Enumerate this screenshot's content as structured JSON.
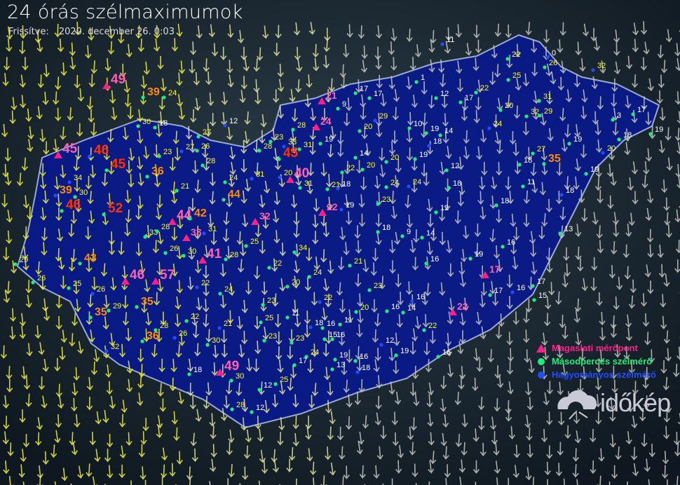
{
  "header": {
    "title": "24 órás szélmaximumok",
    "updated_label": "Frissítve:",
    "updated_value": "2020. december 26. 0:03"
  },
  "legend": [
    {
      "label": "Magaslati mérőpont",
      "symbol": "triangle",
      "color": "#ff1f8a"
    },
    {
      "label": "Másodperces szélmérő",
      "symbol": "dot",
      "color": "#19f07a"
    },
    {
      "label": "Hagyományos szélmérő",
      "symbol": "dot",
      "color": "#1f4dff"
    }
  ],
  "logo": {
    "text": "időkép"
  },
  "colors": {
    "calm": "#ffffff",
    "moderate": "#ffff22",
    "strong": "#ff8c00",
    "severe": "#ff3300",
    "high_station": "#ff5fb4",
    "country": "#0a1a8a"
  },
  "stations": [
    {
      "v": "49",
      "t": "h"
    },
    {
      "v": "45",
      "t": "h"
    },
    {
      "v": "21",
      "t": "h"
    },
    {
      "v": "24",
      "t": "h"
    },
    {
      "v": "40",
      "t": "h"
    },
    {
      "v": "22",
      "t": "h"
    },
    {
      "v": "44",
      "t": "h"
    },
    {
      "v": "33",
      "t": "h"
    },
    {
      "v": "41",
      "t": "h"
    },
    {
      "v": "46",
      "t": "h"
    },
    {
      "v": "57",
      "t": "h"
    },
    {
      "v": "32",
      "t": "h"
    },
    {
      "v": "49",
      "t": "h"
    },
    {
      "v": "22",
      "t": "h"
    },
    {
      "v": "17",
      "t": "h"
    },
    {
      "v": "46",
      "t": "s"
    },
    {
      "v": "52",
      "t": "s"
    },
    {
      "v": "46",
      "t": "s"
    },
    {
      "v": "45",
      "t": "s"
    },
    {
      "v": "39",
      "t": "s"
    },
    {
      "v": "39",
      "t": "s"
    },
    {
      "v": "43",
      "t": "s"
    },
    {
      "v": "42",
      "t": "s"
    },
    {
      "v": "44",
      "t": "s"
    },
    {
      "v": "45",
      "t": "s"
    },
    {
      "v": "33",
      "t": "s"
    },
    {
      "v": "35",
      "t": "s"
    },
    {
      "v": "36",
      "t": "s"
    },
    {
      "v": "35",
      "t": "s"
    },
    {
      "v": "36",
      "t": "s"
    },
    {
      "v": "32",
      "t": "s"
    },
    {
      "v": "35",
      "t": "s"
    },
    {
      "v": "30",
      "t": "s"
    },
    {
      "v": "27",
      "t": "s"
    },
    {
      "v": "23",
      "t": "s"
    },
    {
      "v": "27",
      "t": "s"
    },
    {
      "v": "26",
      "t": "s"
    },
    {
      "v": "28",
      "t": "s"
    },
    {
      "v": "21",
      "t": "s"
    },
    {
      "v": "24",
      "t": "s"
    },
    {
      "v": "31",
      "t": "s"
    },
    {
      "v": "28",
      "t": "s"
    },
    {
      "v": "23",
      "t": "s"
    },
    {
      "v": "28",
      "t": "s"
    },
    {
      "v": "31",
      "t": "s"
    },
    {
      "v": "34",
      "t": "s"
    },
    {
      "v": "30",
      "t": "s"
    },
    {
      "v": "29",
      "t": "s"
    },
    {
      "v": "26",
      "t": "s"
    },
    {
      "v": "25",
      "t": "s"
    },
    {
      "v": "26",
      "t": "s"
    },
    {
      "v": "33",
      "t": "s"
    },
    {
      "v": "28",
      "t": "s"
    },
    {
      "v": "26",
      "t": "s"
    },
    {
      "v": "30",
      "t": "s"
    },
    {
      "v": "31",
      "t": "s"
    },
    {
      "v": "25",
      "t": "s"
    },
    {
      "v": "28",
      "t": "s"
    },
    {
      "v": "22",
      "t": "s"
    },
    {
      "v": "34",
      "t": "s"
    },
    {
      "v": "22",
      "t": "s"
    },
    {
      "v": "24",
      "t": "s"
    },
    {
      "v": "22",
      "t": "s"
    },
    {
      "v": "29",
      "t": "s"
    },
    {
      "v": "28",
      "t": "s"
    },
    {
      "v": "26",
      "t": "s"
    },
    {
      "v": "30",
      "t": "s"
    },
    {
      "v": "30",
      "t": "s"
    },
    {
      "v": "28",
      "t": "s"
    },
    {
      "v": "25",
      "t": "s"
    },
    {
      "v": "21",
      "t": "s"
    },
    {
      "v": "23",
      "t": "s"
    },
    {
      "v": "25",
      "t": "s"
    },
    {
      "v": "24",
      "t": "s"
    },
    {
      "v": "20",
      "t": "s"
    },
    {
      "v": "22",
      "t": "s"
    },
    {
      "v": "23",
      "t": "s"
    },
    {
      "v": "24",
      "t": "s"
    },
    {
      "v": "21",
      "t": "s"
    },
    {
      "v": "23",
      "t": "s"
    },
    {
      "v": "29",
      "t": "s"
    },
    {
      "v": "20",
      "t": "s"
    },
    {
      "v": "22",
      "t": "s"
    },
    {
      "v": "20",
      "t": "s"
    },
    {
      "v": "24",
      "t": "s"
    },
    {
      "v": "24",
      "t": "s"
    },
    {
      "v": "20",
      "t": "s"
    },
    {
      "v": "23",
      "t": "s"
    },
    {
      "v": "21",
      "t": "s"
    },
    {
      "v": "22",
      "t": "s"
    },
    {
      "v": "20",
      "t": "s"
    },
    {
      "v": "23",
      "t": "s"
    },
    {
      "v": "22",
      "t": "s"
    },
    {
      "v": "25",
      "t": "s"
    },
    {
      "v": "26",
      "t": "s"
    },
    {
      "v": "32",
      "t": "s"
    },
    {
      "v": "31",
      "t": "s"
    },
    {
      "v": "32",
      "t": "s"
    },
    {
      "v": "29",
      "t": "s"
    },
    {
      "v": "27",
      "t": "s"
    },
    {
      "v": "24",
      "t": "s"
    },
    {
      "v": "22",
      "t": "s"
    },
    {
      "v": "31",
      "t": "s"
    },
    {
      "v": "24",
      "t": "s"
    },
    {
      "v": "18",
      "t": "s"
    },
    {
      "v": "12",
      "t": "s"
    },
    {
      "v": "17",
      "t": "s"
    },
    {
      "v": "17",
      "t": "s"
    },
    {
      "v": "9",
      "t": "s"
    },
    {
      "v": "1",
      "t": "s"
    },
    {
      "v": "11",
      "t": "s"
    },
    {
      "v": "10",
      "t": "s"
    },
    {
      "v": "12",
      "t": "s"
    },
    {
      "v": "17",
      "t": "s"
    },
    {
      "v": "20",
      "t": "s"
    },
    {
      "v": "0",
      "t": "s"
    },
    {
      "v": "3",
      "t": "s"
    },
    {
      "v": "17",
      "t": "s"
    },
    {
      "v": "19",
      "t": "s"
    },
    {
      "v": "18",
      "t": "s"
    },
    {
      "v": "20",
      "t": "s"
    },
    {
      "v": "19",
      "t": "s"
    },
    {
      "v": "18",
      "t": "s"
    },
    {
      "v": "19",
      "t": "s"
    },
    {
      "v": "11",
      "t": "s"
    },
    {
      "v": "18",
      "t": "s"
    },
    {
      "v": "18",
      "t": "s"
    },
    {
      "v": "13",
      "t": "s"
    },
    {
      "v": "16",
      "t": "s"
    },
    {
      "v": "17",
      "t": "s"
    },
    {
      "v": "16",
      "t": "s"
    },
    {
      "v": "17",
      "t": "s"
    },
    {
      "v": "15",
      "t": "s"
    },
    {
      "v": "19",
      "t": "s"
    },
    {
      "v": "19",
      "t": "s"
    },
    {
      "v": "18",
      "t": "s"
    },
    {
      "v": "14",
      "t": "s"
    },
    {
      "v": "18",
      "t": "s"
    },
    {
      "v": "19",
      "t": "s"
    },
    {
      "v": "16",
      "t": "s"
    },
    {
      "v": "19",
      "t": "s"
    },
    {
      "v": "12",
      "t": "s"
    },
    {
      "v": "12",
      "t": "s"
    },
    {
      "v": "19",
      "t": "s"
    },
    {
      "v": "14",
      "t": "s"
    },
    {
      "v": "18",
      "t": "s"
    },
    {
      "v": "18",
      "t": "s"
    },
    {
      "v": "9",
      "t": "s"
    },
    {
      "v": "14",
      "t": "s"
    },
    {
      "v": "20",
      "t": "s"
    },
    {
      "v": "18",
      "t": "s"
    },
    {
      "v": "11",
      "t": "s"
    },
    {
      "v": "16",
      "t": "s"
    },
    {
      "v": "16",
      "t": "s"
    },
    {
      "v": "19",
      "t": "s"
    },
    {
      "v": "12",
      "t": "s"
    },
    {
      "v": "16",
      "t": "s"
    },
    {
      "v": "13",
      "t": "s"
    },
    {
      "v": "15",
      "t": "s"
    },
    {
      "v": "14",
      "t": "s"
    },
    {
      "v": "16",
      "t": "s"
    },
    {
      "v": "16",
      "t": "s"
    },
    {
      "v": "16",
      "t": "s"
    },
    {
      "v": "11",
      "t": "s"
    },
    {
      "v": "19",
      "t": "s"
    },
    {
      "v": "18",
      "t": "s"
    },
    {
      "v": "12",
      "t": "s"
    },
    {
      "v": "17",
      "t": "s"
    },
    {
      "v": "12",
      "t": "s"
    },
    {
      "v": "18",
      "t": "s"
    },
    {
      "v": "17",
      "t": "s"
    }
  ]
}
